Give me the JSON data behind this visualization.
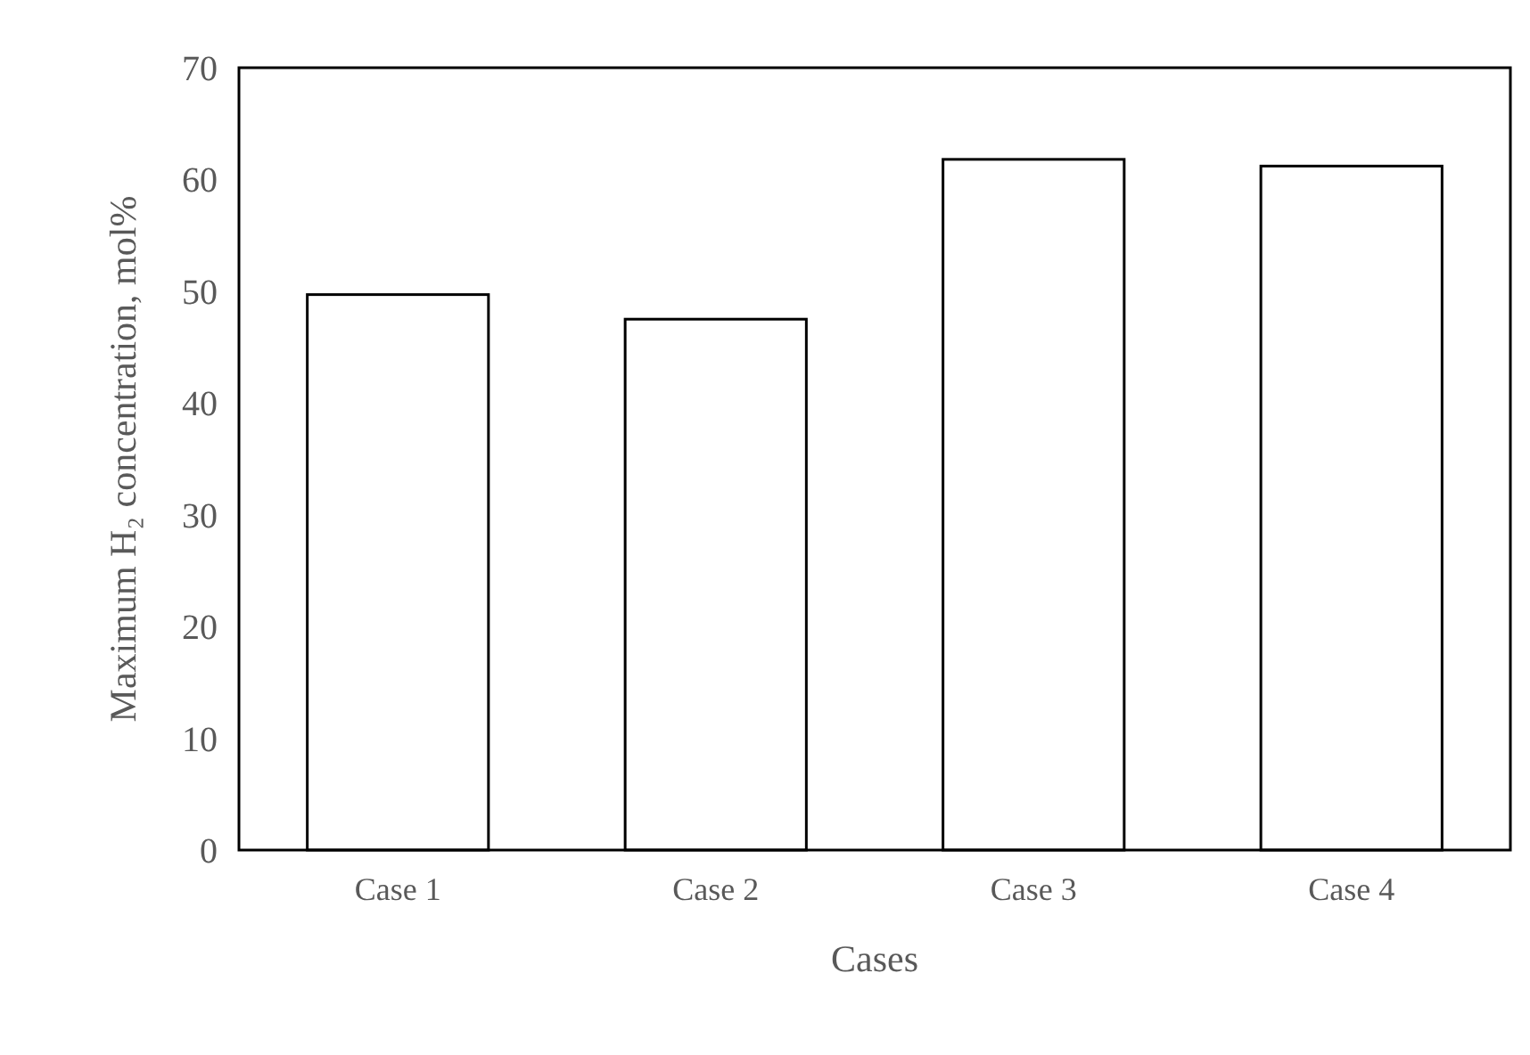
{
  "chart_data": {
    "type": "bar",
    "xlabel": "Cases",
    "ylabel": "Maximum H₂ concentration, mol%",
    "categories": [
      "Case 1",
      "Case 2",
      "Case 3",
      "Case 4"
    ],
    "values": [
      49.7,
      47.5,
      61.8,
      61.2
    ],
    "color": "#ffffff",
    "ylim": [
      0,
      70
    ],
    "yticks": [
      0,
      10,
      20,
      30,
      40,
      50,
      60,
      70
    ],
    "grid": false
  }
}
